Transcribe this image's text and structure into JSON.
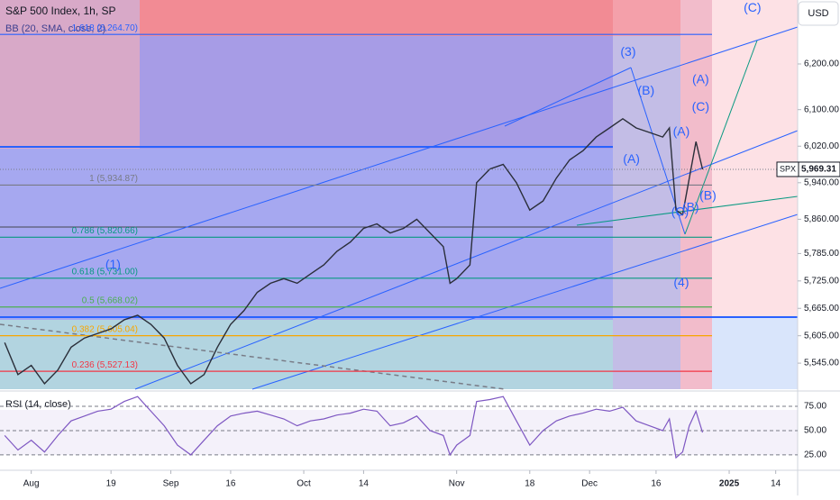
{
  "chart_data": {
    "type": "line",
    "title": "S&P 500 Index, 1h, SP",
    "subtitle": "BB (20, SMA, close, 2)",
    "currency": "USD",
    "symbol": "SPX",
    "last_price": {
      "value": 5969.31,
      "label": "5,969.31"
    },
    "xlim": [
      -4.7,
      115.3
    ],
    "xticks": [
      {
        "value": 0,
        "label": "Aug"
      },
      {
        "value": 12,
        "label": "19"
      },
      {
        "value": 21,
        "label": "Sep"
      },
      {
        "value": 30,
        "label": "16"
      },
      {
        "value": 41,
        "label": "Oct"
      },
      {
        "value": 50,
        "label": "14"
      },
      {
        "value": 64,
        "label": "Nov"
      },
      {
        "value": 75,
        "label": "18"
      },
      {
        "value": 84,
        "label": "Dec"
      },
      {
        "value": 94,
        "label": "16"
      },
      {
        "value": 105,
        "label": "2025"
      },
      {
        "value": 112,
        "label": "14"
      }
    ],
    "ylim": [
      5488,
      6340
    ],
    "yticks": [
      {
        "value": 5545,
        "label": "5,545.00"
      },
      {
        "value": 5605,
        "label": "5,605.00"
      },
      {
        "value": 5665,
        "label": "5,665.00"
      },
      {
        "value": 5725,
        "label": "5,725.00"
      },
      {
        "value": 5785,
        "label": "5,785.00"
      },
      {
        "value": 5860,
        "label": "5,860.00"
      },
      {
        "value": 5940,
        "label": "5,940.00"
      },
      {
        "value": 6020,
        "label": "6,020.00"
      },
      {
        "value": 6100,
        "label": "6,100.00"
      },
      {
        "value": 6200,
        "label": "6,200.00"
      }
    ],
    "x": [
      -4,
      -2,
      0,
      2,
      4,
      6,
      8,
      10,
      12,
      14,
      16,
      18,
      20,
      22,
      24,
      26,
      28,
      30,
      32,
      34,
      36,
      38,
      40,
      42,
      44,
      46,
      48,
      50,
      52,
      54,
      56,
      58,
      60,
      62,
      63,
      64,
      66,
      67,
      69,
      71,
      73,
      75,
      77,
      79,
      81,
      83,
      85,
      87,
      89,
      91,
      93,
      95,
      96,
      97,
      98,
      99,
      100,
      101
    ],
    "series": [
      {
        "name": "SPX",
        "color": "#2a2e39",
        "values": [
          5590,
          5520,
          5540,
          5500,
          5530,
          5580,
          5600,
          5610,
          5620,
          5640,
          5650,
          5630,
          5600,
          5540,
          5500,
          5520,
          5580,
          5630,
          5660,
          5700,
          5720,
          5730,
          5720,
          5740,
          5760,
          5790,
          5810,
          5840,
          5850,
          5830,
          5840,
          5860,
          5830,
          5800,
          5720,
          5730,
          5760,
          5940,
          5970,
          5980,
          5940,
          5880,
          5900,
          5950,
          5990,
          6010,
          6040,
          6060,
          6080,
          6060,
          6050,
          6040,
          6060,
          5880,
          5870,
          5950,
          6030,
          5969.31
        ]
      }
    ],
    "fib_levels": [
      {
        "label": "1.618 (6,264.70)",
        "value": 6264.7,
        "color": "#2962ff"
      },
      {
        "label": "1 (5,934.87)",
        "value": 5934.87,
        "color": "#787b86"
      },
      {
        "label": "0.786 (5,820.66)",
        "value": 5820.66,
        "color": "#089981"
      },
      {
        "label": "0.618 (5,731.00)",
        "value": 5731.0,
        "color": "#089981"
      },
      {
        "label": "0.5 (5,668.02)",
        "value": 5668.02,
        "color": "#4caf50"
      },
      {
        "label": "0.382 (5,605.04)",
        "value": 5605.04,
        "color": "#f7a600"
      },
      {
        "label": "0.236 (5,527.13)",
        "value": 5527.13,
        "color": "#f23645"
      }
    ],
    "annotations": [
      {
        "text": "(1)",
        "x": 12.3,
        "y": 5760
      },
      {
        "text": "(3)",
        "x": 89.8,
        "y": 6225
      },
      {
        "text": "(B)",
        "x": 92.5,
        "y": 6140
      },
      {
        "text": "(A)",
        "x": 90.3,
        "y": 5990
      },
      {
        "text": "(A)",
        "x": 100.7,
        "y": 6165
      },
      {
        "text": "(C)",
        "x": 100.7,
        "y": 6105
      },
      {
        "text": "(A)",
        "x": 97.8,
        "y": 6050
      },
      {
        "text": "(C)",
        "x": 97.6,
        "y": 5875
      },
      {
        "text": "(B)",
        "x": 99.2,
        "y": 5885
      },
      {
        "text": "(B)",
        "x": 101.8,
        "y": 5910
      },
      {
        "text": "(4)",
        "x": 97.8,
        "y": 5720
      },
      {
        "text": "(C)",
        "x": 108.5,
        "y": 6322
      }
    ],
    "rsi": {
      "title": "RSI (14, close)",
      "color": "#7e57c2",
      "ylim": [
        11,
        88
      ],
      "yticks": [
        {
          "value": 25,
          "label": "25.00"
        },
        {
          "value": 50,
          "label": "50.00"
        },
        {
          "value": 75,
          "label": "75.00"
        }
      ],
      "values": [
        45,
        30,
        40,
        28,
        45,
        60,
        65,
        70,
        72,
        80,
        85,
        70,
        55,
        35,
        25,
        40,
        55,
        65,
        68,
        70,
        66,
        62,
        55,
        60,
        62,
        66,
        68,
        72,
        70,
        55,
        58,
        65,
        50,
        45,
        25,
        35,
        45,
        80,
        82,
        85,
        60,
        35,
        50,
        60,
        65,
        68,
        72,
        70,
        74,
        60,
        55,
        50,
        62,
        22,
        28,
        55,
        70,
        48
      ]
    }
  }
}
